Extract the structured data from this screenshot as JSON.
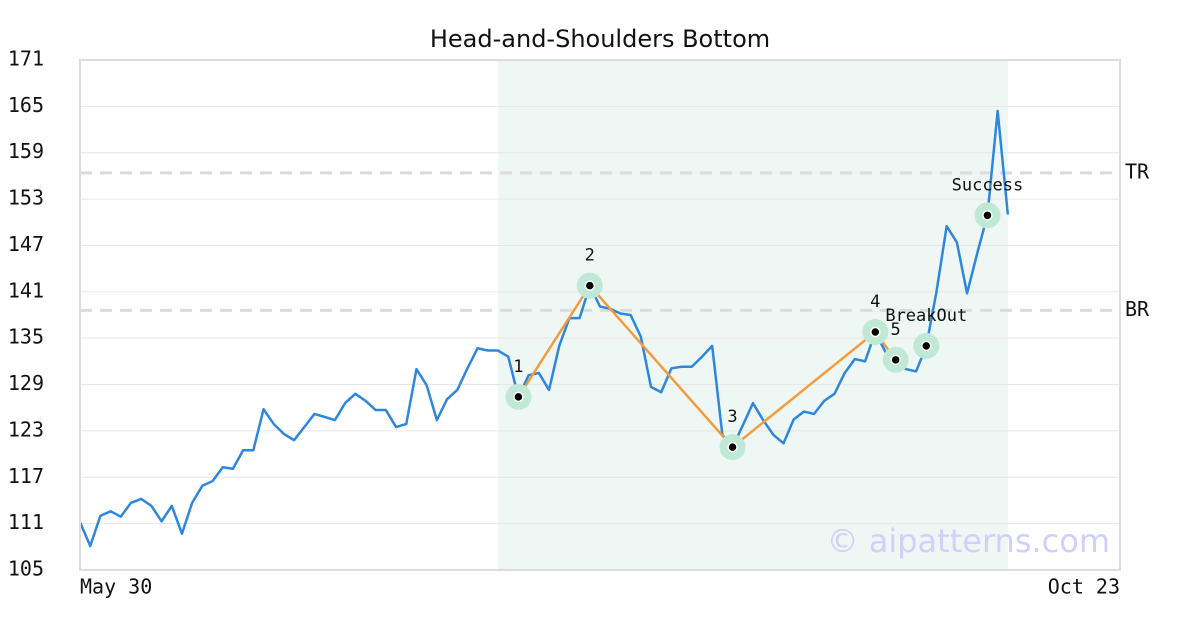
{
  "chart_data": {
    "type": "line",
    "title": "Head-and-Shoulders Bottom",
    "color": "#2e86de",
    "values": [
      111.2,
      108.1,
      112.0,
      112.6,
      111.9,
      113.7,
      114.2,
      113.3,
      111.3,
      113.3,
      109.7,
      113.7,
      115.9,
      116.5,
      118.3,
      118.1,
      120.5,
      120.5,
      125.8,
      123.9,
      122.6,
      121.8,
      123.5,
      125.2,
      124.8,
      124.4,
      126.6,
      127.8,
      126.9,
      125.7,
      125.7,
      123.5,
      123.9,
      131.0,
      128.9,
      124.4,
      127.1,
      128.3,
      131.1,
      133.7,
      133.4,
      133.4,
      132.6,
      127.4,
      130.2,
      130.5,
      128.3,
      134.0,
      137.6,
      137.6,
      141.8,
      139.1,
      138.8,
      138.2,
      138.0,
      135.2,
      128.7,
      128.0,
      131.1,
      131.3,
      131.3,
      132.6,
      134.0,
      122.5,
      120.9,
      123.7,
      126.6,
      124.4,
      122.5,
      121.4,
      124.5,
      125.5,
      125.2,
      126.9,
      127.8,
      130.5,
      132.3,
      132.0,
      135.8,
      133.2,
      132.2,
      131.0,
      130.7,
      134.0,
      141.0,
      149.5,
      147.4,
      140.8,
      146.0,
      150.9,
      164.4,
      151.0
    ],
    "xlim": [
      0,
      102
    ],
    "xticks": [
      {
        "value": 0,
        "label": "May 30"
      },
      {
        "value": 102,
        "label": "Oct 23"
      }
    ],
    "ylim": [
      105,
      171
    ],
    "yticks": [
      105,
      111,
      117,
      123,
      129,
      135,
      141,
      147,
      153,
      159,
      165,
      171
    ],
    "grid": true,
    "highlight_range": [
      41,
      91
    ],
    "highlight_color": "#eef7f3",
    "pattern_color": "#f39c3d",
    "pattern_points": [
      {
        "label": "1",
        "x": 43,
        "y": 127.4
      },
      {
        "label": "2",
        "x": 50,
        "y": 141.8
      },
      {
        "label": "3",
        "x": 64,
        "y": 120.9
      },
      {
        "label": "4",
        "x": 78,
        "y": 135.8
      },
      {
        "label": "5",
        "x": 80,
        "y": 132.2
      }
    ],
    "events": [
      {
        "label": "BreakOut",
        "x": 83,
        "y": 134.0
      },
      {
        "label": "Success",
        "x": 89,
        "y": 150.9
      }
    ],
    "levels": [
      {
        "label": "TR",
        "value": 156.4
      },
      {
        "label": "BR",
        "value": 138.6
      }
    ],
    "watermark": "© aipatterns.com"
  }
}
